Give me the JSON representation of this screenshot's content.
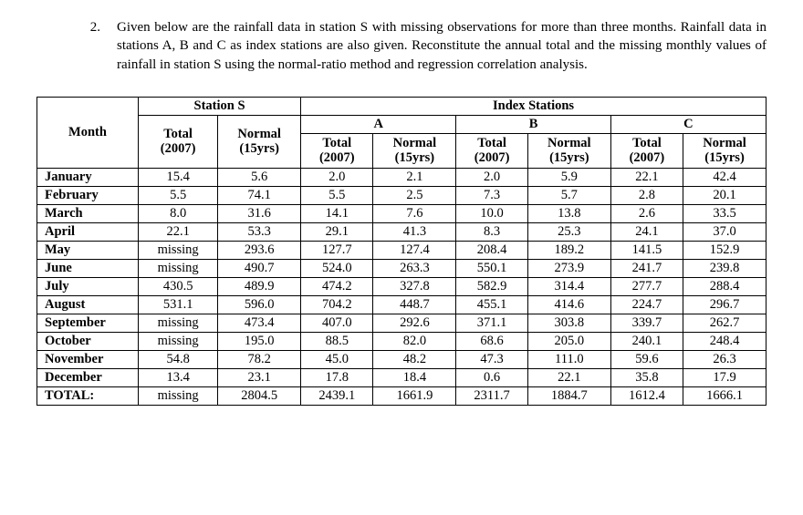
{
  "problem": {
    "number": "2.",
    "text": "Given below are the rainfall data in station S with missing observations for more than three months. Rainfall data in stations A, B and C as index stations are also given. Reconstitute the annual total and the missing monthly values of rainfall in station S using the normal-ratio method and regression correlation analysis."
  },
  "table": {
    "month_label": "Month",
    "station_s_label": "Station S",
    "index_label": "Index Stations",
    "groups": [
      "A",
      "B",
      "C"
    ],
    "sub_total": "Total",
    "sub_normal": "Normal",
    "sub_total_year": "(2007)",
    "sub_normal_year": "(15yrs)",
    "rows": [
      {
        "m": "January",
        "s_t": "15.4",
        "s_n": "5.6",
        "a_t": "2.0",
        "a_n": "2.1",
        "b_t": "2.0",
        "b_n": "5.9",
        "c_t": "22.1",
        "c_n": "42.4"
      },
      {
        "m": "February",
        "s_t": "5.5",
        "s_n": "74.1",
        "a_t": "5.5",
        "a_n": "2.5",
        "b_t": "7.3",
        "b_n": "5.7",
        "c_t": "2.8",
        "c_n": "20.1"
      },
      {
        "m": "March",
        "s_t": "8.0",
        "s_n": "31.6",
        "a_t": "14.1",
        "a_n": "7.6",
        "b_t": "10.0",
        "b_n": "13.8",
        "c_t": "2.6",
        "c_n": "33.5"
      },
      {
        "m": "April",
        "s_t": "22.1",
        "s_n": "53.3",
        "a_t": "29.1",
        "a_n": "41.3",
        "b_t": "8.3",
        "b_n": "25.3",
        "c_t": "24.1",
        "c_n": "37.0"
      },
      {
        "m": "May",
        "s_t": "missing",
        "s_n": "293.6",
        "a_t": "127.7",
        "a_n": "127.4",
        "b_t": "208.4",
        "b_n": "189.2",
        "c_t": "141.5",
        "c_n": "152.9"
      },
      {
        "m": "June",
        "s_t": "missing",
        "s_n": "490.7",
        "a_t": "524.0",
        "a_n": "263.3",
        "b_t": "550.1",
        "b_n": "273.9",
        "c_t": "241.7",
        "c_n": "239.8"
      },
      {
        "m": "July",
        "s_t": "430.5",
        "s_n": "489.9",
        "a_t": "474.2",
        "a_n": "327.8",
        "b_t": "582.9",
        "b_n": "314.4",
        "c_t": "277.7",
        "c_n": "288.4"
      },
      {
        "m": "August",
        "s_t": "531.1",
        "s_n": "596.0",
        "a_t": "704.2",
        "a_n": "448.7",
        "b_t": "455.1",
        "b_n": "414.6",
        "c_t": "224.7",
        "c_n": "296.7"
      },
      {
        "m": "September",
        "s_t": "missing",
        "s_n": "473.4",
        "a_t": "407.0",
        "a_n": "292.6",
        "b_t": "371.1",
        "b_n": "303.8",
        "c_t": "339.7",
        "c_n": "262.7"
      },
      {
        "m": "October",
        "s_t": "missing",
        "s_n": "195.0",
        "a_t": "88.5",
        "a_n": "82.0",
        "b_t": "68.6",
        "b_n": "205.0",
        "c_t": "240.1",
        "c_n": "248.4"
      },
      {
        "m": "November",
        "s_t": "54.8",
        "s_n": "78.2",
        "a_t": "45.0",
        "a_n": "48.2",
        "b_t": "47.3",
        "b_n": "111.0",
        "c_t": "59.6",
        "c_n": "26.3"
      },
      {
        "m": "December",
        "s_t": "13.4",
        "s_n": "23.1",
        "a_t": "17.8",
        "a_n": "18.4",
        "b_t": "0.6",
        "b_n": "22.1",
        "c_t": "35.8",
        "c_n": "17.9"
      }
    ],
    "total": {
      "m": "TOTAL:",
      "s_t": "missing",
      "s_n": "2804.5",
      "a_t": "2439.1",
      "a_n": "1661.9",
      "b_t": "2311.7",
      "b_n": "1884.7",
      "c_t": "1612.4",
      "c_n": "1666.1"
    }
  }
}
